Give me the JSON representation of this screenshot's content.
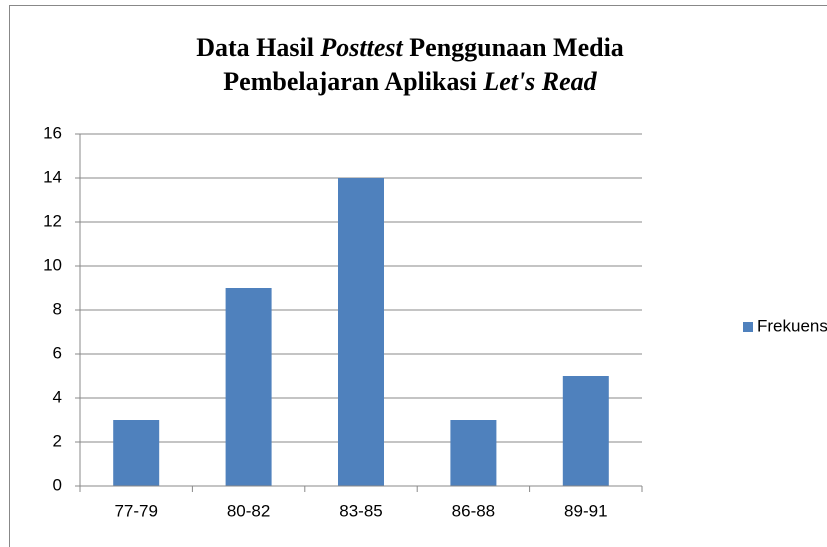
{
  "chart_data": {
    "type": "bar",
    "title": [
      [
        {
          "text": "Data Hasil ",
          "italic": false
        },
        {
          "text": "Posttest",
          "italic": true
        },
        {
          "text": " Penggunaan Media",
          "italic": false
        }
      ],
      [
        {
          "text": "Pembelajaran Aplikasi ",
          "italic": false
        },
        {
          "text": "Let's Read",
          "italic": true
        }
      ]
    ],
    "categories": [
      "77-79",
      "80-82",
      "83-85",
      "86-88",
      "89-91"
    ],
    "series": [
      {
        "name": "Frekuensi",
        "color": "#4f81bd",
        "values": [
          3,
          9,
          14,
          3,
          5
        ]
      }
    ],
    "ylim": [
      0,
      16
    ],
    "yticks": [
      0,
      2,
      4,
      6,
      8,
      10,
      12,
      14,
      16
    ],
    "grid": true,
    "legend": "right"
  }
}
